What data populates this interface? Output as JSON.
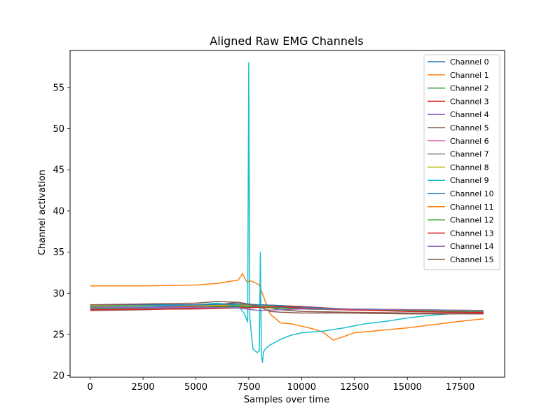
{
  "chart_data": {
    "type": "line",
    "title": "Aligned Raw EMG Channels",
    "xlabel": "Samples over time",
    "ylabel": "Channel activation",
    "xlim": [
      -950,
      19600
    ],
    "ylim": [
      19.8,
      59.5
    ],
    "xticks": [
      0,
      2500,
      5000,
      7500,
      10000,
      12500,
      15000,
      17500
    ],
    "yticks": [
      20,
      25,
      30,
      35,
      40,
      45,
      50,
      55
    ],
    "grid": false,
    "legend_position": "top-right",
    "series": [
      {
        "name": "Channel 0",
        "color": "#1f77b4",
        "x": [
          0,
          5000,
          7000,
          8000,
          9000,
          10000,
          12000,
          15000,
          18600
        ],
        "y": [
          28.5,
          28.5,
          28.6,
          28.4,
          28.3,
          28.2,
          28.1,
          28.0,
          27.9
        ]
      },
      {
        "name": "Channel 1",
        "color": "#ff7f0e",
        "x": [
          0,
          2500,
          5000,
          6000,
          6500,
          7000,
          7200,
          7400,
          7600,
          7800,
          8000,
          8500,
          9000,
          9500,
          10000,
          10500,
          11000,
          11500,
          12500,
          15000,
          17500,
          18600
        ],
        "y": [
          30.9,
          30.9,
          31.0,
          31.2,
          31.4,
          31.6,
          32.4,
          31.4,
          31.5,
          31.3,
          31.0,
          27.5,
          26.4,
          26.3,
          26.0,
          25.7,
          25.3,
          24.3,
          25.2,
          25.8,
          26.6,
          26.9
        ]
      },
      {
        "name": "Channel 2",
        "color": "#2ca02c",
        "x": [
          0,
          5000,
          7000,
          8000,
          9000,
          10000,
          12000,
          15000,
          18600
        ],
        "y": [
          28.4,
          28.4,
          28.5,
          28.3,
          28.2,
          28.1,
          28.0,
          27.9,
          27.8
        ]
      },
      {
        "name": "Channel 3",
        "color": "#d62728",
        "x": [
          0,
          5000,
          7000,
          8000,
          9000,
          10000,
          12000,
          15000,
          18600
        ],
        "y": [
          28.3,
          28.4,
          28.5,
          28.6,
          28.5,
          28.4,
          28.1,
          27.9,
          27.7
        ]
      },
      {
        "name": "Channel 4",
        "color": "#9467bd",
        "x": [
          0,
          5000,
          7000,
          8000,
          9000,
          10000,
          12000,
          15000,
          18600
        ],
        "y": [
          28.1,
          28.2,
          28.3,
          28.3,
          28.2,
          28.1,
          28.0,
          27.9,
          27.8
        ]
      },
      {
        "name": "Channel 5",
        "color": "#8c564b",
        "x": [
          0,
          2500,
          5000,
          6000,
          7000,
          8000,
          9000,
          10000,
          12000,
          15000,
          18600
        ],
        "y": [
          27.9,
          28.0,
          28.2,
          28.6,
          28.9,
          28.5,
          28.0,
          27.8,
          27.7,
          27.6,
          27.5
        ]
      },
      {
        "name": "Channel 6",
        "color": "#e377c2",
        "x": [
          0,
          5000,
          7000,
          8000,
          9000,
          10000,
          12000,
          15000,
          18600
        ],
        "y": [
          28.2,
          28.3,
          28.4,
          28.3,
          28.2,
          28.1,
          28.0,
          27.9,
          27.8
        ]
      },
      {
        "name": "Channel 7",
        "color": "#7f7f7f",
        "x": [
          0,
          5000,
          7000,
          8000,
          9000,
          10000,
          12000,
          15000,
          18600
        ],
        "y": [
          28.6,
          28.6,
          28.7,
          28.6,
          28.5,
          28.3,
          28.1,
          27.9,
          27.8
        ]
      },
      {
        "name": "Channel 8",
        "color": "#bcbd22",
        "x": [
          0,
          5000,
          7000,
          8000,
          9000,
          10000,
          12000,
          15000,
          18600
        ],
        "y": [
          28.5,
          28.5,
          28.6,
          28.5,
          28.4,
          28.3,
          28.1,
          28.0,
          27.9
        ]
      },
      {
        "name": "Channel 9",
        "color": "#17becf",
        "x": [
          0,
          2500,
          5000,
          6000,
          7000,
          7300,
          7450,
          7500,
          7550,
          7700,
          7900,
          8000,
          8050,
          8100,
          8150,
          8200,
          8300,
          8500,
          9000,
          9500,
          10000,
          11000,
          12000,
          13000,
          14000,
          15000,
          16000,
          17000,
          18600
        ],
        "y": [
          28.3,
          28.4,
          28.6,
          28.8,
          28.5,
          27.5,
          26.5,
          58.0,
          27.0,
          23.2,
          22.8,
          23.0,
          35.0,
          22.5,
          21.6,
          22.9,
          23.3,
          23.7,
          24.4,
          24.9,
          25.2,
          25.4,
          25.8,
          26.3,
          26.6,
          27.0,
          27.3,
          27.5,
          27.6
        ]
      },
      {
        "name": "Channel 10",
        "color": "#1f77b4",
        "x": [
          0,
          5000,
          7000,
          8000,
          9000,
          10000,
          12000,
          15000,
          18600
        ],
        "y": [
          28.6,
          28.6,
          28.7,
          28.6,
          28.5,
          28.3,
          28.1,
          27.9,
          27.8
        ]
      },
      {
        "name": "Channel 11",
        "color": "#ff7f0e",
        "x": [
          0,
          5000,
          7000,
          8000,
          9000,
          10000,
          12000,
          15000,
          18600
        ],
        "y": [
          28.3,
          28.3,
          28.4,
          28.3,
          28.2,
          28.1,
          28.0,
          27.9,
          27.8
        ]
      },
      {
        "name": "Channel 12",
        "color": "#2ca02c",
        "x": [
          0,
          5000,
          7000,
          8000,
          9000,
          10000,
          12000,
          15000,
          18600
        ],
        "y": [
          28.2,
          28.3,
          28.4,
          28.3,
          28.2,
          28.1,
          28.0,
          27.9,
          27.8
        ]
      },
      {
        "name": "Channel 13",
        "color": "#d62728",
        "x": [
          0,
          5000,
          7000,
          8000,
          9000,
          10000,
          12000,
          15000,
          18600
        ],
        "y": [
          28.0,
          28.1,
          28.2,
          28.3,
          28.4,
          28.2,
          28.0,
          27.8,
          27.6
        ]
      },
      {
        "name": "Channel 14",
        "color": "#9467bd",
        "x": [
          0,
          5000,
          7000,
          8000,
          9000,
          10000,
          12000,
          15000,
          18600
        ],
        "y": [
          28.3,
          28.3,
          28.2,
          27.9,
          28.0,
          28.1,
          28.1,
          28.0,
          27.9
        ]
      },
      {
        "name": "Channel 15",
        "color": "#8c564b",
        "x": [
          0,
          2500,
          5000,
          6000,
          7000,
          8000,
          8500,
          9000,
          10000,
          12000,
          15000,
          18600
        ],
        "y": [
          28.6,
          28.7,
          28.8,
          29.0,
          28.9,
          28.4,
          27.8,
          27.7,
          27.6,
          27.6,
          27.5,
          27.5
        ]
      }
    ]
  }
}
